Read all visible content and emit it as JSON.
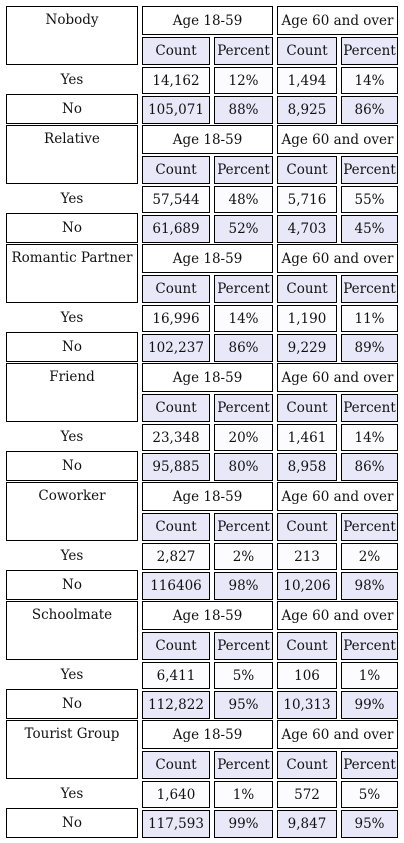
{
  "age_headers": [
    "Age 18-59",
    "Age 60 and over"
  ],
  "sub_headers": [
    "Count",
    "Percent",
    "Count",
    "Percent"
  ],
  "row_labels": [
    "Yes",
    "No"
  ],
  "blocks": [
    {
      "title": "Nobody",
      "yes": [
        "14,162",
        "12%",
        "1,494",
        "14%"
      ],
      "no": [
        "105,071",
        "88%",
        "8,925",
        "86%"
      ]
    },
    {
      "title": "Relative",
      "yes": [
        "57,544",
        "48%",
        "5,716",
        "55%"
      ],
      "no": [
        "61,689",
        "52%",
        "4,703",
        "45%"
      ]
    },
    {
      "title": "Romantic Partner",
      "yes": [
        "16,996",
        "14%",
        "1,190",
        "11%"
      ],
      "no": [
        "102,237",
        "86%",
        "9,229",
        "89%"
      ]
    },
    {
      "title": "Friend",
      "yes": [
        "23,348",
        "20%",
        "1,461",
        "14%"
      ],
      "no": [
        "95,885",
        "80%",
        "8,958",
        "86%"
      ]
    },
    {
      "title": "Coworker",
      "yes": [
        "2,827",
        "2%",
        "213",
        "2%"
      ],
      "no": [
        "116406",
        "98%",
        "10,206",
        "98%"
      ]
    },
    {
      "title": "Schoolmate",
      "yes": [
        "6,411",
        "5%",
        "106",
        "1%"
      ],
      "no": [
        "112,822",
        "95%",
        "10,313",
        "99%"
      ]
    },
    {
      "title": "Tourist Group",
      "yes": [
        "1,640",
        "1%",
        "572",
        "5%"
      ],
      "no": [
        "117,593",
        "99%",
        "9,847",
        "95%"
      ]
    }
  ]
}
